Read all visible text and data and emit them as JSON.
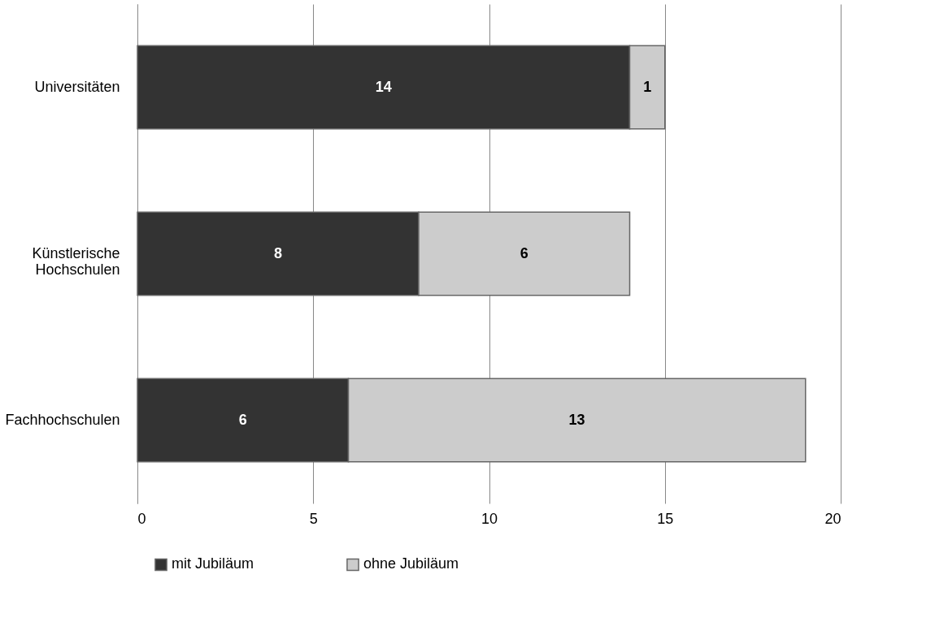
{
  "chart_data": {
    "type": "bar",
    "orientation": "horizontal",
    "stacked": true,
    "categories": [
      "Universitäten",
      "Künstlerische Hochschulen",
      "Fachhochschulen"
    ],
    "series": [
      {
        "name": "mit Jubiläum",
        "color": "#333333",
        "values": [
          14,
          8,
          6
        ]
      },
      {
        "name": "ohne Jubiläum",
        "color": "#cccccc",
        "values": [
          1,
          6,
          13
        ]
      }
    ],
    "xlim": [
      0,
      20
    ],
    "xticks": [
      0,
      5,
      10,
      15,
      20
    ],
    "grid": "x",
    "legend": "bottom",
    "data_labels": true
  }
}
